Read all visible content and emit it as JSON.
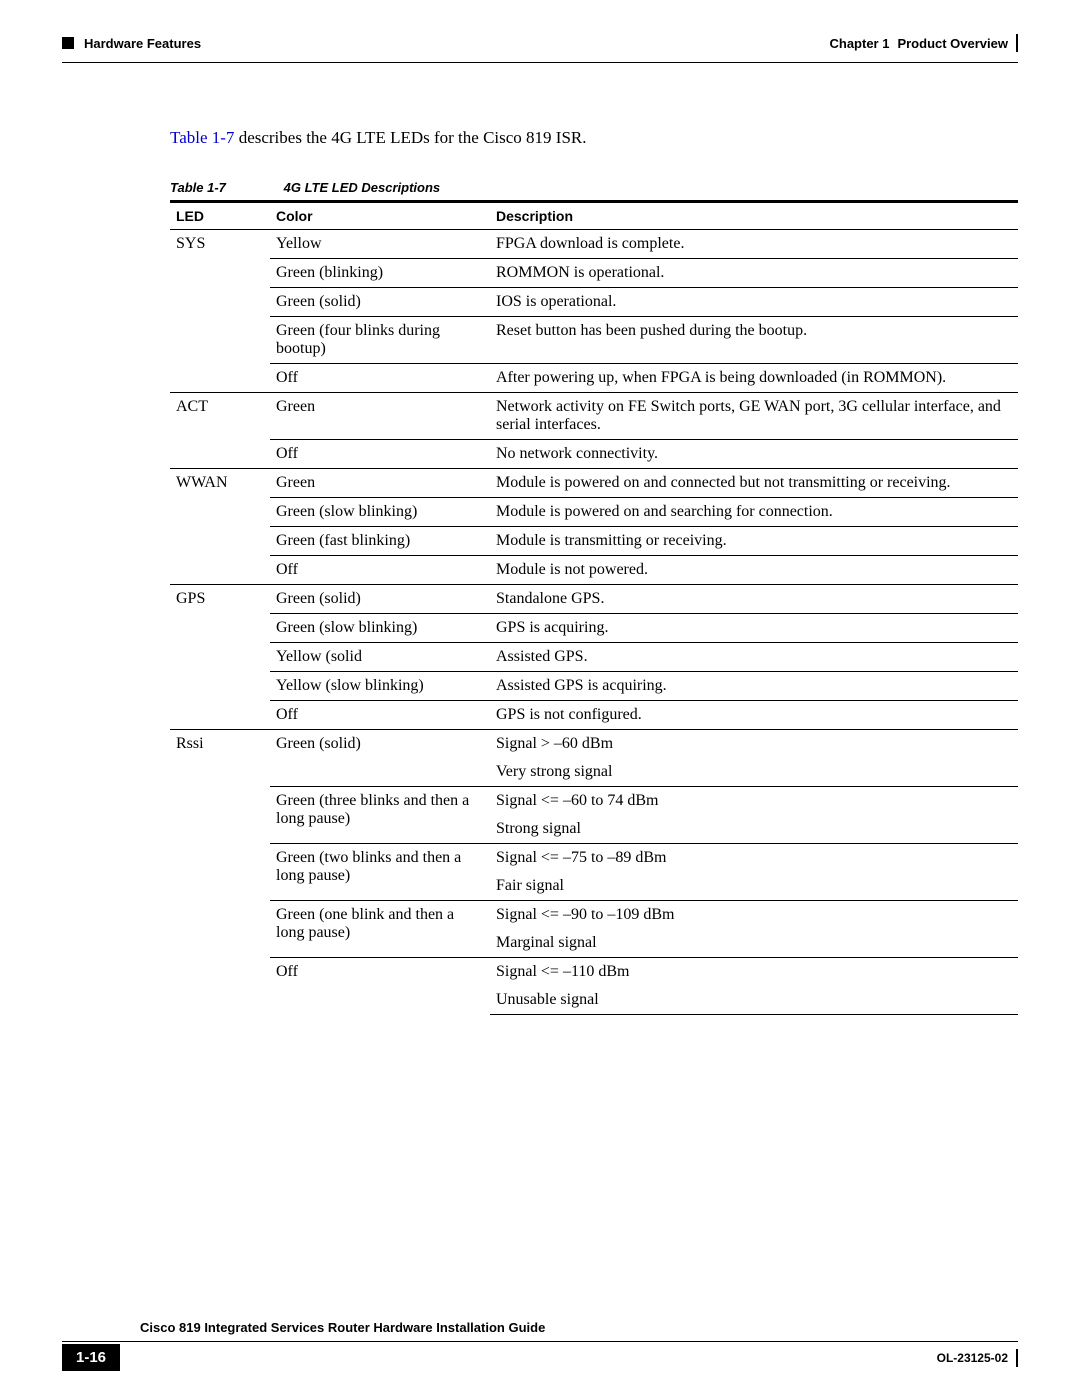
{
  "header": {
    "left": "Hardware Features",
    "chapter_label": "Chapter 1",
    "chapter_title": "Product Overview"
  },
  "intro": {
    "link_text": "Table 1-7",
    "rest": " describes the 4G LTE LEDs for the Cisco 819 ISR."
  },
  "caption": {
    "num": "Table 1-7",
    "title": "4G LTE LED Descriptions"
  },
  "table": {
    "headers": {
      "led": "LED",
      "color": "Color",
      "desc": "Description"
    },
    "cells": {
      "r0_led": "SYS",
      "r0_color": "Yellow",
      "r0_desc": "FPGA download is complete.",
      "r1_color": "Green (blinking)",
      "r1_desc": "ROMMON is operational.",
      "r2_color": "Green (solid)",
      "r2_desc": "IOS is operational.",
      "r3_color": "Green (four blinks during bootup)",
      "r3_desc": "Reset button has been pushed during the bootup.",
      "r4_color": "Off",
      "r4_desc": "After powering up, when FPGA is being downloaded (in ROMMON).",
      "r5_led": "ACT",
      "r5_color": "Green",
      "r5_desc": "Network activity on FE Switch ports, GE WAN port, 3G cellular interface, and serial interfaces.",
      "r6_color": "Off",
      "r6_desc": "No network connectivity.",
      "r7_led": "WWAN",
      "r7_color": "Green",
      "r7_desc": "Module is powered on and connected but not transmitting or receiving.",
      "r8_color": "Green (slow blinking)",
      "r8_desc": "Module is powered on and searching for connection.",
      "r9_color": "Green (fast blinking)",
      "r9_desc": "Module is transmitting or receiving.",
      "r10_color": "Off",
      "r10_desc": "Module is not powered.",
      "r11_led": "GPS",
      "r11_color": "Green (solid)",
      "r11_desc": "Standalone GPS.",
      "r12_color": "Green (slow blinking)",
      "r12_desc": "GPS is acquiring.",
      "r13_color": "Yellow (solid",
      "r13_desc": "Assisted GPS.",
      "r14_color": "Yellow (slow blinking)",
      "r14_desc": "Assisted GPS is acquiring.",
      "r15_color": "Off",
      "r15_desc": "GPS is not configured.",
      "r16_led": "Rssi",
      "r16_color": "Green (solid)",
      "r16_desc": "Signal > –60 dBm",
      "r17_desc": "Very strong signal",
      "r18_color": "Green (three blinks and then a long pause)",
      "r18_desc": "Signal <= –60 to 74 dBm",
      "r19_desc": "Strong signal",
      "r20_color": "Green (two blinks and then a long pause)",
      "r20_desc": "Signal <= –75 to –89 dBm",
      "r21_desc": "Fair signal",
      "r22_color": "Green (one blink and then a long pause)",
      "r22_desc": "Signal <= –90 to –109 dBm",
      "r23_desc": "Marginal signal",
      "r24_color": "Off",
      "r24_desc": "Signal <= –110 dBm",
      "r25_desc": "Unusable signal"
    }
  },
  "footer": {
    "guide_title": "Cisco 819 Integrated Services Router Hardware Installation Guide",
    "page_num": "1-16",
    "doc_id": "OL-23125-02"
  }
}
